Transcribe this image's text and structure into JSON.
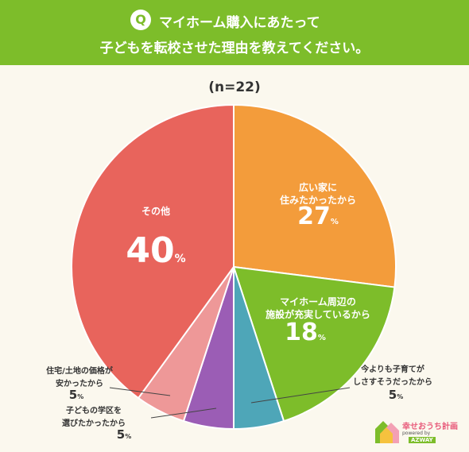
{
  "header": {
    "q_mark": "Q",
    "title_line1": "マイホーム購入にあたって",
    "title_line2": "子どもを転校させた理由を教えてください。",
    "bg_color": "#7dbd2a"
  },
  "chart_data": {
    "type": "pie",
    "n_label": "(n=22)",
    "slices": [
      {
        "label_lines": [
          "広い家に",
          "住みたかったから"
        ],
        "value": 27,
        "value_text": "27",
        "color": "#f39c3b"
      },
      {
        "label_lines": [
          "マイホーム周辺の",
          "施設が充実しているから"
        ],
        "value": 18,
        "value_text": "18",
        "color": "#7dbd2a"
      },
      {
        "label_lines": [
          "今よりも子育てが",
          "しさすそうだったから"
        ],
        "value": 5,
        "value_text": "5",
        "color": "#4ea6b8"
      },
      {
        "label_lines": [
          "子どもの学区を",
          "選びたかったから"
        ],
        "value": 5,
        "value_text": "5",
        "color": "#9b5db5"
      },
      {
        "label_lines": [
          "住宅/土地の価格が",
          "安かったから"
        ],
        "value": 5,
        "value_text": "5",
        "color": "#ee9898"
      },
      {
        "label_lines": [
          "その他"
        ],
        "value": 40,
        "value_text": "40",
        "color": "#e8645c"
      }
    ],
    "unit": "%"
  },
  "logo": {
    "name": "幸せおうち計画",
    "sub": "powered by",
    "brand": "AZWAY"
  }
}
